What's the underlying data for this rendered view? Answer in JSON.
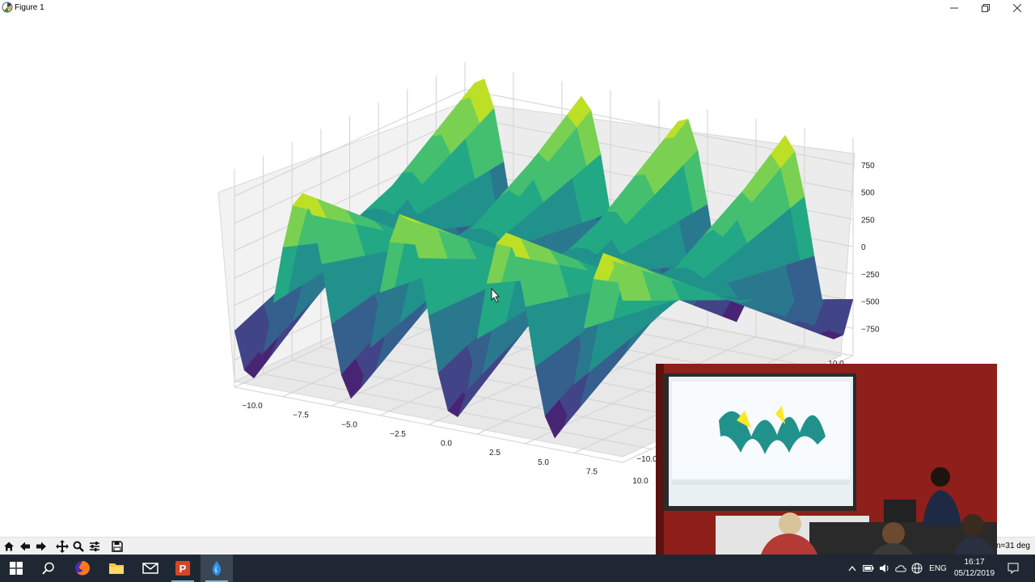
{
  "window": {
    "title": "Figure 1",
    "minimize_icon": "minimize-icon",
    "restore_icon": "restore-icon",
    "close_icon": "close-icon"
  },
  "chart_data": {
    "type": "surface3d",
    "title": "",
    "colormap": "viridis",
    "x_ticks": [
      "−10.0",
      "−7.5",
      "−5.0",
      "−2.5",
      "0.0",
      "2.5",
      "5.0",
      "7.5",
      "10.0"
    ],
    "y_ticks_visible": [
      "−10.0",
      "10.0"
    ],
    "z_ticks": [
      "750",
      "500",
      "250",
      "0",
      "−250",
      "−500",
      "−750"
    ],
    "xlim": [
      -10,
      10
    ],
    "ylim": [
      -10,
      10
    ],
    "zlim": [
      -1000,
      1000
    ],
    "grid": true
  },
  "toolbar": {
    "buttons": [
      "home-icon",
      "back-icon",
      "forward-icon",
      "pan-icon",
      "zoom-icon",
      "configure-subplots-icon",
      "save-icon"
    ],
    "status_text": "n=31 deg"
  },
  "taskbar": {
    "apps": [
      "windows-start-icon",
      "search-icon",
      "firefox-icon",
      "file-explorer-icon",
      "mail-icon",
      "powerpoint-icon",
      "python-icon"
    ],
    "language": "ENG",
    "time": "16:17",
    "date": "05/12/2019"
  }
}
